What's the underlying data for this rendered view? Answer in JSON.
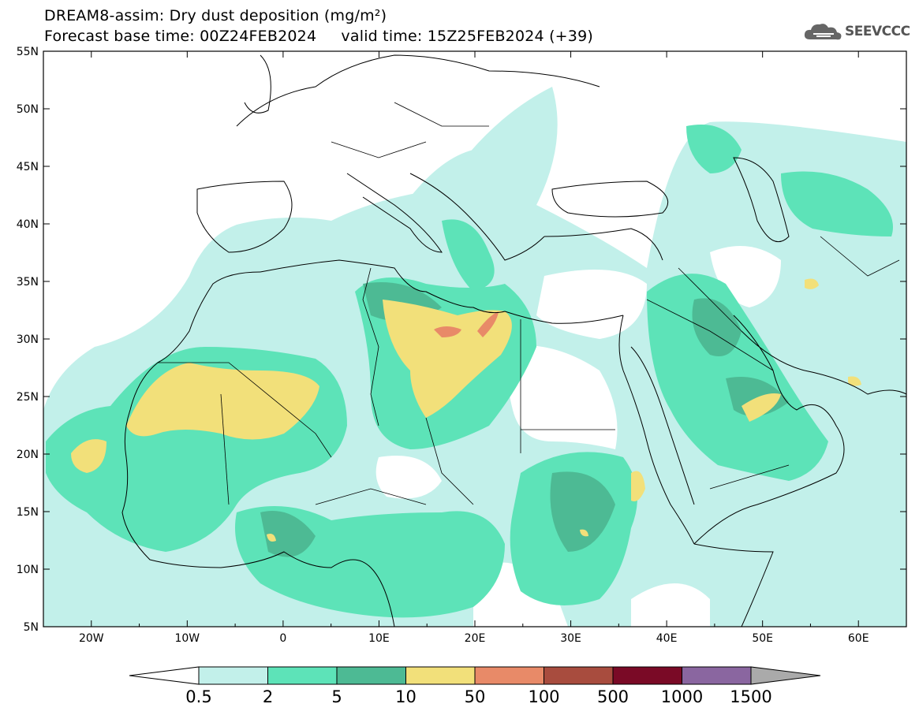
{
  "header": {
    "title_line1": "DREAM8-assim: Dry dust deposition (mg/m²)",
    "title_line2": "Forecast base time: 00Z24FEB2024     valid time: 15Z25FEB2024 (+39)"
  },
  "logo": {
    "text": "SEEVCCC",
    "icon": "cloud-icon"
  },
  "map": {
    "lon_range": [
      -25,
      65
    ],
    "lat_range": [
      5,
      55
    ],
    "lat_ticks": [
      "5N",
      "10N",
      "15N",
      "20N",
      "25N",
      "30N",
      "35N",
      "40N",
      "45N",
      "50N",
      "55N"
    ],
    "lon_ticks": [
      "20W",
      "10W",
      "0",
      "10E",
      "20E",
      "30E",
      "40E",
      "50E",
      "60E"
    ]
  },
  "colorbar": {
    "labels": [
      "0.5",
      "2",
      "5",
      "10",
      "50",
      "100",
      "500",
      "1000",
      "1500"
    ],
    "colors": [
      "#c2f0ea",
      "#5de3b8",
      "#4dba94",
      "#f2e07a",
      "#e88a68",
      "#a84c3e",
      "#7a0a26",
      "#8a66a0",
      "#aaaaaa"
    ]
  }
}
